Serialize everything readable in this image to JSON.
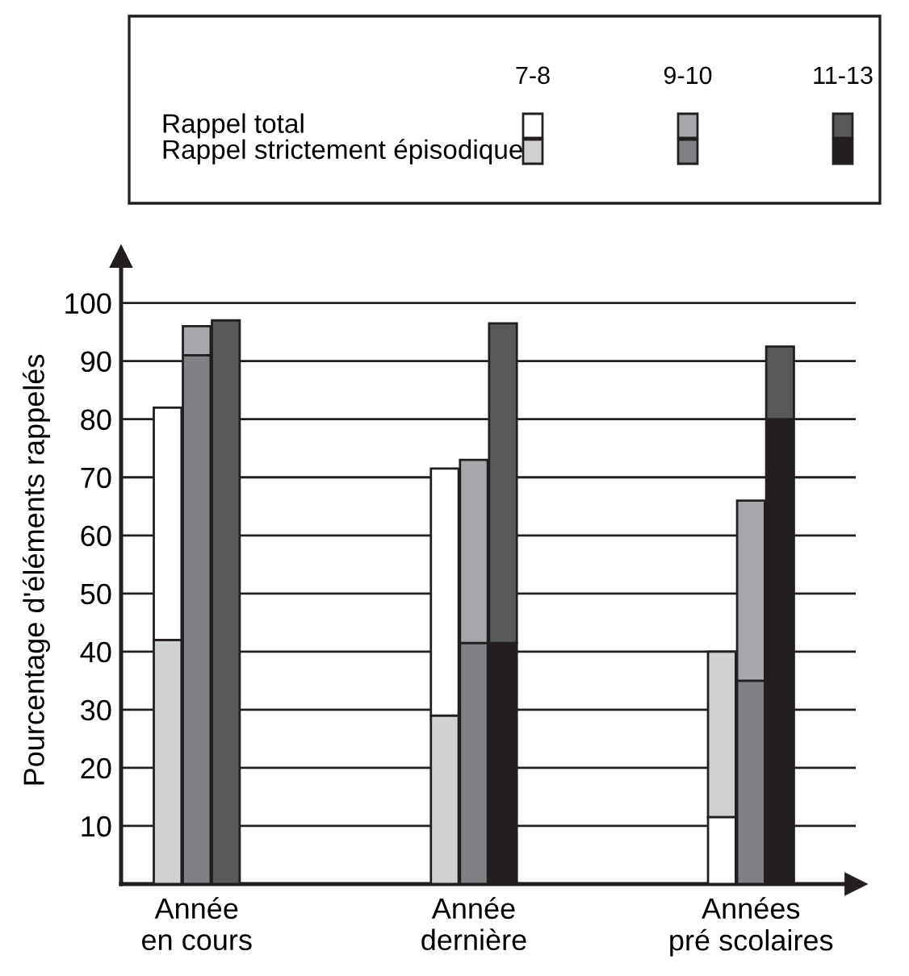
{
  "chart_data": {
    "type": "bar",
    "ylabel": "Pourcentage d'éléments rappelés",
    "categories": [
      "Année\nen cours",
      "Année\ndernière",
      "Années\npré scolaires"
    ],
    "annotations": [
      "7-8",
      "9-10",
      "11-13",
      "Rappel total",
      "Rappel strictement épisodique"
    ],
    "series": [
      {
        "color": "#d0d1d3",
        "values": [
          42,
          29,
          28.5
        ],
        "base": [
          0,
          0,
          11.5
        ]
      },
      {
        "color": "#ffffff",
        "values": [
          40,
          42.5,
          11.5
        ],
        "base": [
          42,
          29,
          0
        ]
      },
      {
        "color": "#808184",
        "values": [
          91,
          41.5,
          35
        ],
        "base": [
          0,
          0,
          0
        ]
      },
      {
        "color": "#a7a8ab",
        "values": [
          5,
          31.5,
          31
        ],
        "base": [
          91,
          41.5,
          35
        ]
      },
      {
        "color": "#231f20",
        "values": [
          null,
          41.5,
          80
        ],
        "base": [
          null,
          0,
          0
        ]
      },
      {
        "color": "#58595b",
        "values": [
          97,
          55,
          12.5
        ],
        "base": [
          0,
          41.5,
          80
        ]
      }
    ],
    "ylim": [
      0,
      108
    ],
    "yticks": [
      10,
      20,
      30,
      40,
      50,
      60,
      70,
      80,
      90,
      100
    ],
    "grid": "y"
  }
}
